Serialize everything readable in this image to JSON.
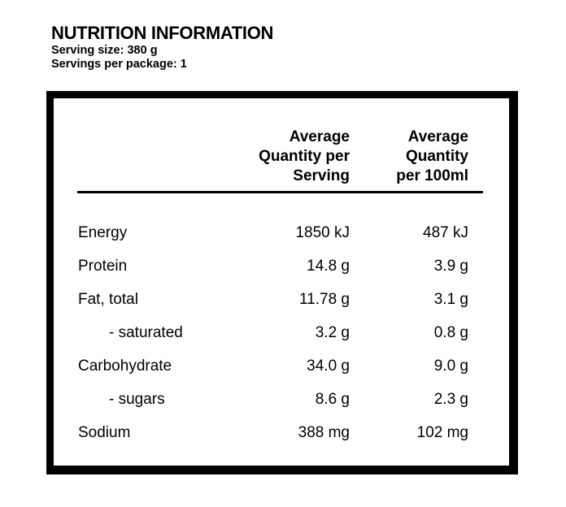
{
  "title": "NUTRITION INFORMATION",
  "serving_size": "Serving size: 380 g",
  "servings_per_package": "Servings per package: 1",
  "table": {
    "col_serving": [
      "Average",
      "Quantity per",
      "Serving"
    ],
    "col_100ml": [
      "Average",
      "Quantity",
      "per 100ml"
    ],
    "rows": [
      {
        "name": "Energy",
        "serving": "1850 kJ",
        "per100": "487 kJ"
      },
      {
        "name": "Protein",
        "serving": "14.8 g",
        "per100": "3.9 g"
      },
      {
        "name": "Fat, total",
        "serving": "11.78 g",
        "per100": "3.1 g"
      },
      {
        "name": "- saturated",
        "serving": "3.2 g",
        "per100": "0.8 g"
      },
      {
        "name": "Carbohydrate",
        "serving": "34.0 g",
        "per100": "9.0 g"
      },
      {
        "name": "- sugars",
        "serving": "8.6 g",
        "per100": "2.3 g"
      },
      {
        "name": "Sodium",
        "serving": "388 mg",
        "per100": "102 mg"
      }
    ]
  }
}
